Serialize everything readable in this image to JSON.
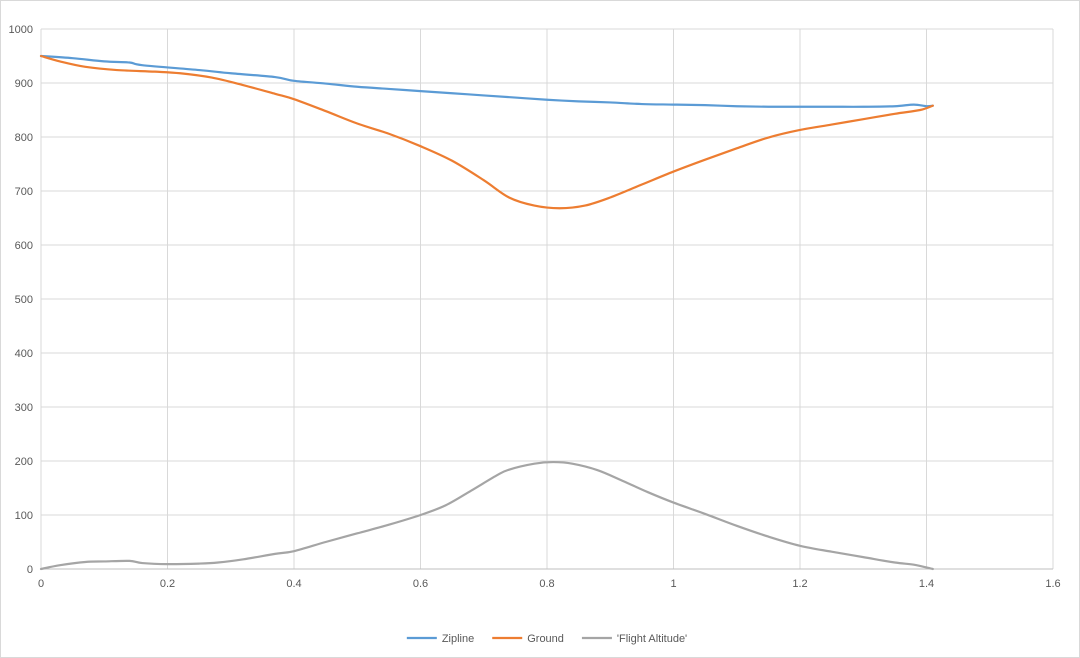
{
  "chart_data": {
    "type": "line",
    "title": "",
    "xlabel": "",
    "ylabel": "",
    "xlim": [
      0,
      1.6
    ],
    "ylim": [
      0,
      1000
    ],
    "x_ticks": [
      0,
      0.2,
      0.4,
      0.6,
      0.8,
      1,
      1.2,
      1.4,
      1.6
    ],
    "y_ticks": [
      0,
      100,
      200,
      300,
      400,
      500,
      600,
      700,
      800,
      900,
      1000
    ],
    "grid": true,
    "legend_position": "bottom",
    "series": [
      {
        "name": "Zipline",
        "color": "#5b9bd5",
        "points": [
          [
            0,
            950
          ],
          [
            0.05,
            946
          ],
          [
            0.1,
            940
          ],
          [
            0.14,
            938
          ],
          [
            0.16,
            933
          ],
          [
            0.25,
            924
          ],
          [
            0.3,
            918
          ],
          [
            0.37,
            911
          ],
          [
            0.4,
            904
          ],
          [
            0.45,
            899
          ],
          [
            0.5,
            893
          ],
          [
            0.55,
            889
          ],
          [
            0.6,
            885
          ],
          [
            0.65,
            881
          ],
          [
            0.7,
            877
          ],
          [
            0.75,
            873
          ],
          [
            0.8,
            869
          ],
          [
            0.85,
            866
          ],
          [
            0.9,
            864
          ],
          [
            0.95,
            861
          ],
          [
            1.0,
            860
          ],
          [
            1.05,
            859
          ],
          [
            1.1,
            857
          ],
          [
            1.15,
            856
          ],
          [
            1.2,
            856
          ],
          [
            1.25,
            856
          ],
          [
            1.3,
            856
          ],
          [
            1.35,
            857
          ],
          [
            1.38,
            860
          ],
          [
            1.4,
            857
          ],
          [
            1.41,
            858
          ]
        ]
      },
      {
        "name": "Ground",
        "color": "#ed7d31",
        "points": [
          [
            0,
            950
          ],
          [
            0.03,
            940
          ],
          [
            0.07,
            930
          ],
          [
            0.12,
            924
          ],
          [
            0.18,
            921
          ],
          [
            0.22,
            918
          ],
          [
            0.27,
            910
          ],
          [
            0.32,
            896
          ],
          [
            0.37,
            880
          ],
          [
            0.4,
            870
          ],
          [
            0.45,
            848
          ],
          [
            0.5,
            825
          ],
          [
            0.55,
            806
          ],
          [
            0.6,
            783
          ],
          [
            0.65,
            756
          ],
          [
            0.7,
            720
          ],
          [
            0.74,
            688
          ],
          [
            0.78,
            673
          ],
          [
            0.82,
            668
          ],
          [
            0.86,
            673
          ],
          [
            0.9,
            688
          ],
          [
            0.95,
            712
          ],
          [
            1.0,
            736
          ],
          [
            1.05,
            758
          ],
          [
            1.1,
            779
          ],
          [
            1.15,
            799
          ],
          [
            1.2,
            813
          ],
          [
            1.25,
            823
          ],
          [
            1.3,
            833
          ],
          [
            1.35,
            843
          ],
          [
            1.39,
            850
          ],
          [
            1.41,
            858
          ]
        ]
      },
      {
        "name": "'Flight Altitude'",
        "color": "#a5a5a5",
        "points": [
          [
            0,
            0
          ],
          [
            0.03,
            7
          ],
          [
            0.07,
            13
          ],
          [
            0.1,
            14
          ],
          [
            0.14,
            15
          ],
          [
            0.16,
            11
          ],
          [
            0.2,
            9
          ],
          [
            0.25,
            10
          ],
          [
            0.28,
            12
          ],
          [
            0.32,
            18
          ],
          [
            0.37,
            28
          ],
          [
            0.4,
            33
          ],
          [
            0.45,
            50
          ],
          [
            0.5,
            66
          ],
          [
            0.55,
            82
          ],
          [
            0.6,
            100
          ],
          [
            0.64,
            118
          ],
          [
            0.68,
            145
          ],
          [
            0.72,
            173
          ],
          [
            0.74,
            184
          ],
          [
            0.78,
            195
          ],
          [
            0.81,
            198
          ],
          [
            0.84,
            195
          ],
          [
            0.88,
            183
          ],
          [
            0.92,
            163
          ],
          [
            0.96,
            142
          ],
          [
            1.0,
            123
          ],
          [
            1.05,
            102
          ],
          [
            1.1,
            80
          ],
          [
            1.15,
            60
          ],
          [
            1.2,
            43
          ],
          [
            1.25,
            32
          ],
          [
            1.3,
            22
          ],
          [
            1.35,
            12
          ],
          [
            1.38,
            8
          ],
          [
            1.41,
            0
          ]
        ]
      }
    ]
  }
}
